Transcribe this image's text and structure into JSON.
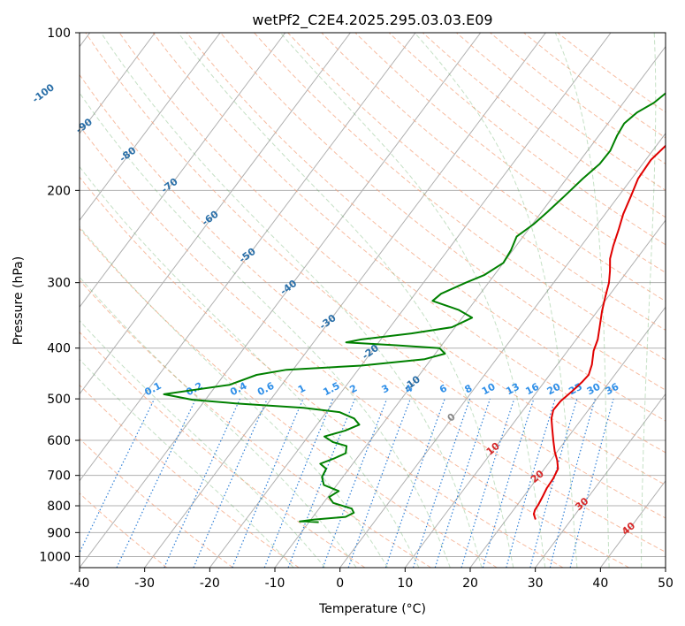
{
  "chart_data": {
    "type": "line",
    "title": "wetPf2_C2E4.2025.295.03.03.E09",
    "xlabel": "Temperature (°C)",
    "ylabel": "Pressure (hPa)",
    "xlim": [
      -40,
      50
    ],
    "ylim": [
      1050,
      100
    ],
    "y_scale": "log",
    "grid": true,
    "x_ticks": [
      -40,
      -30,
      -20,
      -10,
      0,
      10,
      20,
      30,
      40,
      50
    ],
    "y_ticks": [
      100,
      200,
      300,
      400,
      500,
      600,
      700,
      800,
      900,
      1000
    ],
    "series": [
      {
        "variable": "temperature",
        "color": "#e00000",
        "points": [
          [
            24.5,
            850
          ],
          [
            23.6,
            830
          ],
          [
            23.3,
            815
          ],
          [
            23.2,
            795
          ],
          [
            22.9,
            765
          ],
          [
            22.6,
            740
          ],
          [
            22.5,
            710
          ],
          [
            22.1,
            680
          ],
          [
            21.0,
            655
          ],
          [
            19.6,
            630
          ],
          [
            18.1,
            600
          ],
          [
            16.6,
            570
          ],
          [
            15.3,
            545
          ],
          [
            14.6,
            525
          ],
          [
            14.7,
            505
          ],
          [
            15.3,
            485
          ],
          [
            15.8,
            465
          ],
          [
            16.0,
            450
          ],
          [
            15.3,
            430
          ],
          [
            14.0,
            405
          ],
          [
            13.3,
            385
          ],
          [
            12.2,
            365
          ],
          [
            10.7,
            340
          ],
          [
            9.6,
            320
          ],
          [
            8.5,
            300
          ],
          [
            7.3,
            285
          ],
          [
            5.9,
            270
          ],
          [
            4.9,
            255
          ],
          [
            3.9,
            238
          ],
          [
            2.8,
            222
          ],
          [
            1.9,
            205
          ],
          [
            1.0,
            190
          ],
          [
            0.8,
            175
          ],
          [
            1.7,
            160
          ],
          [
            2.8,
            150
          ],
          [
            4.5,
            142
          ],
          [
            6.0,
            135
          ],
          [
            7.0,
            127
          ],
          [
            7.2,
            118
          ],
          [
            6.8,
            112
          ],
          [
            6.9,
            107
          ],
          [
            8.2,
            103
          ],
          [
            10.2,
            100
          ]
        ]
      },
      {
        "variable": "dewpoint",
        "color": "#008000",
        "points": [
          [
            -8.5,
            860
          ],
          [
            -10.5,
            857
          ],
          [
            -11.5,
            857
          ],
          [
            -9.5,
            850
          ],
          [
            -5.0,
            840
          ],
          [
            -4.2,
            825
          ],
          [
            -5.0,
            810
          ],
          [
            -8.5,
            790
          ],
          [
            -9.8,
            770
          ],
          [
            -9.0,
            750
          ],
          [
            -12.0,
            730
          ],
          [
            -13.2,
            705
          ],
          [
            -13.5,
            680
          ],
          [
            -15.0,
            665
          ],
          [
            -13.5,
            650
          ],
          [
            -12.3,
            635
          ],
          [
            -13.0,
            615
          ],
          [
            -15.5,
            605
          ],
          [
            -17.5,
            590
          ],
          [
            -15.0,
            575
          ],
          [
            -13.5,
            560
          ],
          [
            -15.0,
            545
          ],
          [
            -18.0,
            530
          ],
          [
            -24.0,
            520
          ],
          [
            -35.0,
            510
          ],
          [
            -42.0,
            502
          ],
          [
            -47.0,
            490
          ],
          [
            -38.0,
            470
          ],
          [
            -35.0,
            450
          ],
          [
            -31.0,
            440
          ],
          [
            -20.0,
            432
          ],
          [
            -11.0,
            420
          ],
          [
            -8.5,
            410
          ],
          [
            -10.0,
            400
          ],
          [
            -17.0,
            395
          ],
          [
            -25.0,
            390
          ],
          [
            -23.0,
            385
          ],
          [
            -16.0,
            375
          ],
          [
            -10.5,
            365
          ],
          [
            -8.5,
            350
          ],
          [
            -11.5,
            338
          ],
          [
            -16.5,
            325
          ],
          [
            -16.0,
            315
          ],
          [
            -13.5,
            300
          ],
          [
            -11.5,
            290
          ],
          [
            -10.0,
            275
          ],
          [
            -10.3,
            260
          ],
          [
            -11.0,
            245
          ],
          [
            -9.8,
            232
          ],
          [
            -9.1,
            220
          ],
          [
            -8.3,
            205
          ],
          [
            -7.5,
            190
          ],
          [
            -6.6,
            178
          ],
          [
            -6.5,
            168
          ],
          [
            -7.2,
            157
          ],
          [
            -7.5,
            149
          ],
          [
            -6.8,
            142
          ],
          [
            -5.3,
            136
          ],
          [
            -4.3,
            128
          ],
          [
            -3.0,
            120
          ],
          [
            -1.5,
            112
          ],
          [
            0.0,
            105
          ],
          [
            0.8,
            100
          ]
        ]
      }
    ],
    "mixing_ratio_labels": [
      "0.1",
      "0.2",
      "0.4",
      "0.6",
      "1",
      "1.5",
      "2",
      "3",
      "4",
      "6",
      "8",
      "10",
      "13",
      "16",
      "20",
      "25",
      "30",
      "36"
    ],
    "dry_adiabat_labels": [
      "-100",
      "-90",
      "-80",
      "-70",
      "-60",
      "-50",
      "-40",
      "-30",
      "-20",
      "-10"
    ],
    "moist_adiabat_labels": [
      "0",
      "10",
      "20",
      "30",
      "40"
    ]
  }
}
